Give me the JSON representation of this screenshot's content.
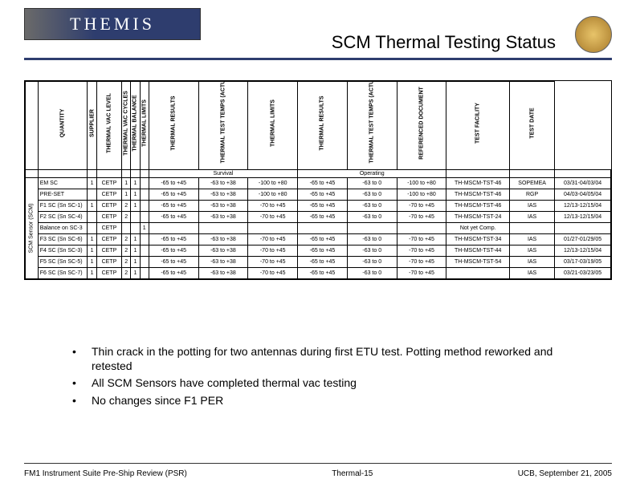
{
  "header": {
    "logo_text": "THEMIS",
    "title": "SCM Thermal Testing Status"
  },
  "columns": [
    "",
    "QUANTITY",
    "SUPPLIER",
    "THERMAL VAC LEVEL",
    "THERMAL VAC CYCLES",
    "THERMAL BALANCE",
    "THERMAL LIMITS",
    "THERMAL RESULTS",
    "THERMAL TEST TEMPS (ACTUAL)",
    "THERMAL LIMITS",
    "THERMAL RESULTS",
    "THERMAL TEST TEMPS (ACTUAL)",
    "REFERENCED DOCUMENT",
    "TEST FACILITY",
    "TEST DATE"
  ],
  "side_label": "SCM Sensor (SCM)",
  "phase_headers": {
    "survival": "Survival",
    "operating": "Operating"
  },
  "rows": [
    {
      "name": "EM SC",
      "qty": "1",
      "sup": "CETP",
      "lvl": "1",
      "cyc": "1",
      "bal": "",
      "lim1": "-65 to +45",
      "res1": "-63 to +38",
      "act1": "-100 to +80",
      "lim2": "-65 to +45",
      "res2": "-63 to 0",
      "act2": "-100 to +80",
      "doc": "TH-MSCM-TST-46",
      "fac": "SOPEMEA",
      "date": "03/31-04/03/04"
    },
    {
      "name": "PRE-SET",
      "qty": "",
      "sup": "CETP",
      "lvl": "1",
      "cyc": "1",
      "bal": "",
      "lim1": "-65 to +45",
      "res1": "-63 to +38",
      "act1": "-100 to +80",
      "lim2": "-65 to +45",
      "res2": "-63 to 0",
      "act2": "-100 to +80",
      "doc": "TH-MSCM-TST-46",
      "fac": "RGP",
      "date": "04/03-04/05/04"
    },
    {
      "name": "F1 SC (Sn SC-1)",
      "qty": "1",
      "sup": "CETP",
      "lvl": "2",
      "cyc": "1",
      "bal": "",
      "lim1": "-65 to +45",
      "res1": "-63 to +38",
      "act1": "-70 to +45",
      "lim2": "-65 to +45",
      "res2": "-63 to 0",
      "act2": "-70 to +45",
      "doc": "TH-MSCM-TST-46",
      "fac": "IAS",
      "date": "12/13-12/15/04"
    },
    {
      "name": "F2 SC (Sn SC-4)",
      "qty": "",
      "sup": "CETP",
      "lvl": "2",
      "cyc": "",
      "bal": "",
      "lim1": "-65 to +45",
      "res1": "-63 to +38",
      "act1": "-70 to +45",
      "lim2": "-65 to +45",
      "res2": "-63 to 0",
      "act2": "-70 to +45",
      "doc": "TH-MSCM-TST-24",
      "fac": "IAS",
      "date": "12/13-12/15/04"
    },
    {
      "name": "Balance on SC-3",
      "qty": "",
      "sup": "CETP",
      "lvl": "",
      "cyc": "",
      "bal": "1",
      "lim1": "",
      "res1": "",
      "act1": "",
      "lim2": "",
      "res2": "",
      "act2": "",
      "doc": "Not yet Comp.",
      "fac": "",
      "date": ""
    },
    {
      "name": "F3 SC (Sn SC-6)",
      "qty": "1",
      "sup": "CETP",
      "lvl": "2",
      "cyc": "1",
      "bal": "",
      "lim1": "-65 to +45",
      "res1": "-63 to +38",
      "act1": "-70 to +45",
      "lim2": "-65 to +45",
      "res2": "-63 to 0",
      "act2": "-70 to +45",
      "doc": "TH-MSCM-TST-34",
      "fac": "IAS",
      "date": "01/27-01/29/05"
    },
    {
      "name": "F4 SC (Sn SC-3)",
      "qty": "1",
      "sup": "CETP",
      "lvl": "2",
      "cyc": "1",
      "bal": "",
      "lim1": "-65 to +45",
      "res1": "-63 to +38",
      "act1": "-70 to +45",
      "lim2": "-65 to +45",
      "res2": "-63 to 0",
      "act2": "-70 to +45",
      "doc": "TH-MSCM-TST-44",
      "fac": "IAS",
      "date": "12/13-12/15/04"
    },
    {
      "name": "F5 SC (Sn SC-5)",
      "qty": "1",
      "sup": "CETP",
      "lvl": "2",
      "cyc": "1",
      "bal": "",
      "lim1": "-65 to +45",
      "res1": "-63 to +38",
      "act1": "-70 to +45",
      "lim2": "-65 to +45",
      "res2": "-63 to 0",
      "act2": "-70 to +45",
      "doc": "TH-MSCM-TST-54",
      "fac": "IAS",
      "date": "03/17-03/19/05"
    },
    {
      "name": "F6 SC (Sn SC-7)",
      "qty": "1",
      "sup": "CETP",
      "lvl": "2",
      "cyc": "1",
      "bal": "",
      "lim1": "-65 to +45",
      "res1": "-63 to +38",
      "act1": "-70 to +45",
      "lim2": "-65 to +45",
      "res2": "-63 to 0",
      "act2": "-70 to +45",
      "doc": "",
      "fac": "IAS",
      "date": "03/21-03/23/05"
    }
  ],
  "bullets": [
    "Thin crack in the potting for two antennas during first ETU test. Potting method reworked and retested",
    "All SCM Sensors have completed thermal vac testing",
    "No changes since F1 PER"
  ],
  "footer": {
    "left": "FM1 Instrument Suite Pre-Ship Review (PSR)",
    "center": "Thermal-15",
    "right": "UCB, September 21, 2005"
  }
}
